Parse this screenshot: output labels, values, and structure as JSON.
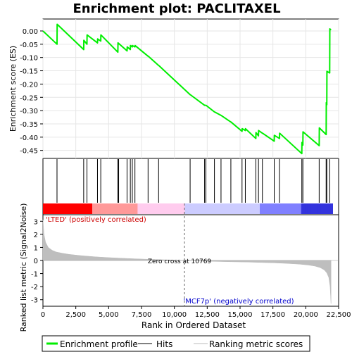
{
  "chart_data": {
    "type": "line",
    "title": "Enrichment plot: PACLITAXEL",
    "xlabel": "Rank in Ordered Dataset",
    "ylabel_top": "Enrichment score (ES)",
    "ylabel_bottom": "Ranked list metric (Signal2Noise)",
    "x_range": [
      0,
      22500
    ],
    "x_ticks": [
      0,
      2500,
      5000,
      7500,
      10000,
      12500,
      15000,
      17500,
      20000,
      22500
    ],
    "x_tick_labels": [
      "0",
      "2,500",
      "5,000",
      "7,500",
      "10,000",
      "12,500",
      "15,000",
      "17,500",
      "20,000",
      "22,500"
    ],
    "es_ylim": [
      -0.48,
      0.045
    ],
    "es_ticks": [
      0.0,
      -0.05,
      -0.1,
      -0.15,
      -0.2,
      -0.25,
      -0.3,
      -0.35,
      -0.4,
      -0.45
    ],
    "es_tick_labels": [
      "0.00",
      "-0.05",
      "-0.10",
      "-0.15",
      "-0.20",
      "-0.25",
      "-0.30",
      "-0.35",
      "-0.40",
      "-0.45"
    ],
    "metric_ylim": [
      -3.5,
      3.5
    ],
    "metric_ticks": [
      3,
      2,
      1,
      0,
      -1,
      -2,
      -3
    ],
    "metric_tick_labels": [
      "3",
      "2",
      "1",
      "0",
      "-1",
      "-2",
      "-3"
    ],
    "series": [
      {
        "name": "Enrichment profile",
        "color": "#00ee00",
        "x": [
          0,
          1070,
          1080,
          3100,
          3110,
          3350,
          3360,
          4150,
          4160,
          4400,
          4410,
          5700,
          5710,
          6400,
          6410,
          6650,
          6660,
          6800,
          6810,
          7000,
          7010,
          8000,
          8010,
          8800,
          8810,
          11200,
          11210,
          12300,
          12310,
          12400,
          12410,
          13050,
          13060,
          13550,
          13560,
          14300,
          14310,
          15150,
          15160,
          15400,
          15410,
          16200,
          16210,
          16400,
          16410,
          16700,
          16710,
          17600,
          17610,
          18000,
          18010,
          19700,
          19710,
          19780,
          19790,
          21020,
          21030,
          21550,
          21560,
          21600,
          21610,
          21820,
          21830,
          21920
        ],
        "y": [
          0.0,
          -0.05,
          0.025,
          -0.07,
          -0.035,
          -0.05,
          -0.015,
          -0.045,
          -0.03,
          -0.038,
          -0.015,
          -0.08,
          -0.045,
          -0.075,
          -0.06,
          -0.07,
          -0.055,
          -0.06,
          -0.055,
          -0.06,
          -0.055,
          -0.095,
          -0.095,
          -0.13,
          -0.13,
          -0.24,
          -0.24,
          -0.28,
          -0.28,
          -0.28,
          -0.28,
          -0.305,
          -0.305,
          -0.318,
          -0.318,
          -0.343,
          -0.343,
          -0.378,
          -0.368,
          -0.375,
          -0.368,
          -0.405,
          -0.383,
          -0.395,
          -0.375,
          -0.385,
          -0.385,
          -0.415,
          -0.393,
          -0.405,
          -0.385,
          -0.462,
          -0.42,
          -0.43,
          -0.38,
          -0.432,
          -0.365,
          -0.39,
          -0.27,
          -0.278,
          -0.152,
          -0.158,
          0.008,
          0.004
        ]
      }
    ],
    "hits": [
      1070,
      3100,
      3350,
      4150,
      4400,
      5700,
      5760,
      6400,
      6650,
      6800,
      7000,
      8000,
      8800,
      11200,
      12300,
      12400,
      13050,
      13550,
      14300,
      15150,
      15400,
      16200,
      16400,
      16700,
      17600,
      18000,
      19700,
      19780,
      21020,
      21550,
      21600,
      21820
    ],
    "metric_curve": {
      "x": [
        0,
        80,
        200,
        400,
        700,
        1000,
        1500,
        2000,
        3000,
        4000,
        5000,
        6000,
        7000,
        8000,
        9000,
        10000,
        10769,
        11500,
        12500,
        13500,
        14500,
        15500,
        16500,
        17500,
        18500,
        19500,
        20200,
        20700,
        21100,
        21400,
        21600,
        21750,
        21850,
        21920
      ],
      "y": [
        3.1,
        2.0,
        1.4,
        1.0,
        0.78,
        0.65,
        0.55,
        0.47,
        0.36,
        0.28,
        0.22,
        0.17,
        0.13,
        0.09,
        0.06,
        0.03,
        0.0,
        -0.03,
        -0.06,
        -0.08,
        -0.1,
        -0.12,
        -0.15,
        -0.18,
        -0.22,
        -0.28,
        -0.35,
        -0.43,
        -0.55,
        -0.72,
        -0.95,
        -1.3,
        -2.0,
        -3.3
      ]
    },
    "zero_cross": 10769,
    "zero_cross_label": "Zero cross at 10769",
    "positive_label": "'LTED' (positively correlated)",
    "negative_label": "'MCF7p' (negatively correlated)",
    "legend": {
      "placement": "bottom",
      "items": [
        {
          "label": "Enrichment profile",
          "color": "#00ee00",
          "kind": "line"
        },
        {
          "label": "Hits",
          "color": "#000000",
          "kind": "line"
        },
        {
          "label": "Ranking metric scores",
          "color": "#bbbbbb",
          "kind": "line"
        }
      ]
    },
    "colors": {
      "profile": "#00ee00",
      "hit": "#000000",
      "metric_fill": "#bebebe",
      "positive_label": "#cc0000",
      "negative_label": "#0000cc",
      "heat_strong_pos": "#ff0000",
      "heat_pos": "#ff9999",
      "heat_light_pos": "#ffccee",
      "heat_light_neg": "#ccccff",
      "heat_neg": "#8080ff",
      "heat_strong_neg": "#3333dd"
    }
  }
}
